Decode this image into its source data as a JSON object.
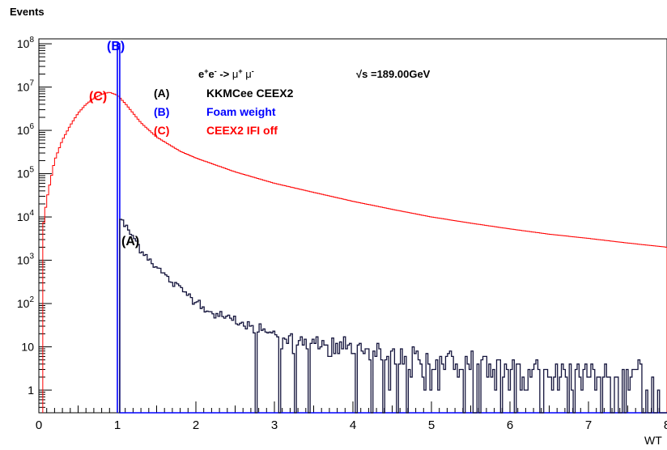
{
  "chart_data": {
    "type": "histogram",
    "ylabel": "Events",
    "xlabel": "WT",
    "xlim": [
      0,
      8
    ],
    "ylim": [
      0.3,
      130000000
    ],
    "yscale": "log",
    "x_ticks": [
      "0",
      "1",
      "2",
      "3",
      "4",
      "5",
      "6",
      "7",
      "8"
    ],
    "y_ticks": [
      {
        "base": "10",
        "exp": "8",
        "value": 100000000
      },
      {
        "base": "10",
        "exp": "7",
        "value": 10000000
      },
      {
        "base": "10",
        "exp": "6",
        "value": 1000000
      },
      {
        "base": "10",
        "exp": "5",
        "value": 100000
      },
      {
        "base": "10",
        "exp": "4",
        "value": 10000
      },
      {
        "base": "10",
        "exp": "3",
        "value": 1000
      },
      {
        "base": "10",
        "exp": "2",
        "value": 100
      },
      {
        "base": "10",
        "exp": "",
        "value": 10
      },
      {
        "base": "1",
        "exp": "",
        "value": 1
      }
    ],
    "header": {
      "process": {
        "p1": "e",
        "p1sup": "+",
        "p2": "e",
        "p2sup": "-",
        "arrow": " -> ",
        "p3": "μ",
        "p3sup": "+",
        "p4": " μ",
        "p4sup": "-"
      },
      "energy": {
        "root": "√s",
        "value": " =189.00GeV"
      }
    },
    "legend": [
      {
        "tag": "(A)",
        "name": "KKMCee CEEX2",
        "color": "#000000"
      },
      {
        "tag": "(B)",
        "name": "Foam weight",
        "color": "#0000ff"
      },
      {
        "tag": "(C)",
        "name": "CEEX2 IFI off",
        "color": "#ff0000"
      }
    ],
    "annotations": [
      {
        "text": "(A)",
        "color": "#000000"
      },
      {
        "text": "(B)",
        "color": "#0000ff"
      },
      {
        "text": "(C)",
        "color": "#ff0000"
      }
    ],
    "series": [
      {
        "tag": "C",
        "color": "#ff0000",
        "description": "CEEX2 IFI off weight distribution",
        "control_points": [
          [
            0.05,
            5000
          ],
          [
            0.1,
            25000
          ],
          [
            0.2,
            200000
          ],
          [
            0.3,
            600000
          ],
          [
            0.4,
            1300000
          ],
          [
            0.5,
            2500000
          ],
          [
            0.6,
            4000000
          ],
          [
            0.7,
            5500000
          ],
          [
            0.8,
            6800000
          ],
          [
            0.9,
            7600000
          ],
          [
            1.0,
            6500000
          ],
          [
            1.1,
            4200000
          ],
          [
            1.2,
            2500000
          ],
          [
            1.3,
            1500000
          ],
          [
            1.5,
            700000
          ],
          [
            1.8,
            330000
          ],
          [
            2.0,
            230000
          ],
          [
            2.5,
            110000
          ],
          [
            3.0,
            60000
          ],
          [
            3.5,
            37000
          ],
          [
            4.0,
            23000
          ],
          [
            4.5,
            15000
          ],
          [
            5.0,
            10000
          ],
          [
            5.5,
            7200
          ],
          [
            6.0,
            5300
          ],
          [
            6.5,
            4000
          ],
          [
            7.0,
            3200
          ],
          [
            7.5,
            2500
          ],
          [
            8.0,
            2000
          ]
        ]
      },
      {
        "tag": "B",
        "color": "#0000ff",
        "description": "Foam weight distribution, single spike near WT = 1",
        "x_low": 1.0,
        "x_high": 1.03,
        "value": 100000000
      },
      {
        "tag": "A",
        "color": "#000000",
        "description": "KKMCee CEEX2 weight distribution",
        "control_points": [
          [
            1.03,
            10000
          ],
          [
            1.1,
            6000
          ],
          [
            1.2,
            3500
          ],
          [
            1.3,
            1800
          ],
          [
            1.5,
            700
          ],
          [
            1.7,
            300
          ],
          [
            2.0,
            120
          ],
          [
            2.2,
            60
          ],
          [
            2.5,
            40
          ],
          [
            3.0,
            20
          ],
          [
            3.5,
            12
          ],
          [
            4.0,
            8
          ],
          [
            5.0,
            4
          ],
          [
            6.0,
            3
          ],
          [
            7.0,
            2
          ],
          [
            8.0,
            2
          ]
        ]
      }
    ]
  }
}
